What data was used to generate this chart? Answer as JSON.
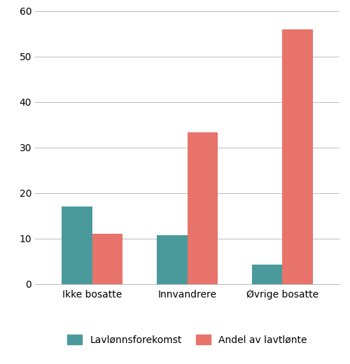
{
  "categories": [
    "Ikke bosatte",
    "Innvandrere",
    "Øvrige bosatte"
  ],
  "lavlonns_values": [
    17,
    10.7,
    4.3
  ],
  "andel_values": [
    11,
    33.3,
    56
  ],
  "bar_color_teal": "#4a9a9c",
  "bar_color_red": "#e8736a",
  "legend_label_1": "Lavlønnsforekomst",
  "legend_label_2": "Andel av lavtlønte",
  "ylim": [
    0,
    60
  ],
  "yticks": [
    0,
    10,
    20,
    30,
    40,
    50,
    60
  ],
  "bar_width": 0.32,
  "background_color": "#ffffff",
  "grid_color": "#bbbbbb"
}
